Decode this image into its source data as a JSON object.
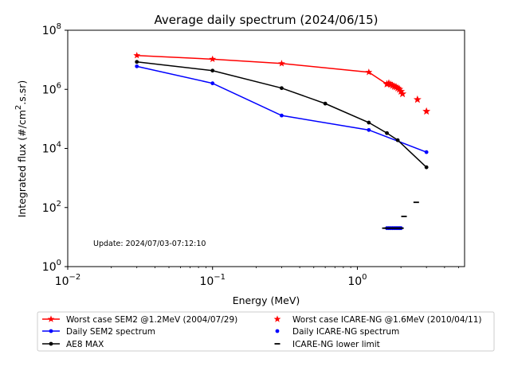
{
  "chart_data": {
    "type": "line",
    "title": "Average daily spectrum (2024/06/15)",
    "xlabel": "Energy (MeV)",
    "ylabel_parts": {
      "pre": "Integrated flux (#/cm",
      "sup": "2",
      "post": ".s.sr)"
    },
    "x_scale": "log",
    "y_scale": "log",
    "xlim": [
      0.01,
      5.5
    ],
    "ylim": [
      1,
      100000000
    ],
    "x_ticks": [
      {
        "value": 0.01,
        "base": "10",
        "exp": "−2"
      },
      {
        "value": 0.1,
        "base": "10",
        "exp": "−1"
      },
      {
        "value": 1,
        "base": "10",
        "exp": "0"
      }
    ],
    "y_ticks": [
      {
        "value": 1,
        "base": "10",
        "exp": "0"
      },
      {
        "value": 100,
        "base": "10",
        "exp": "2"
      },
      {
        "value": 10000,
        "base": "10",
        "exp": "4"
      },
      {
        "value": 1000000,
        "base": "10",
        "exp": "6"
      },
      {
        "value": 100000000,
        "base": "10",
        "exp": "8"
      }
    ],
    "annotation": "Update: 2024/07/03-07:12:10",
    "grid": false,
    "legend_position": "bottom",
    "series": [
      {
        "name": "Worst case SEM2 @1.2MeV (2004/07/29)",
        "color": "#ff0000",
        "marker": "star",
        "line": true,
        "x": [
          0.03,
          0.1,
          0.3,
          1.2,
          1.6
        ],
        "y": [
          14000000,
          10500000,
          7500000,
          3800000,
          1500000
        ]
      },
      {
        "name": "Worst case ICARE-NG @1.6MeV (2010/04/11)",
        "color": "#ff0000",
        "marker": "star",
        "line": false,
        "x": [
          1.6,
          1.65,
          1.7,
          1.75,
          1.8,
          1.85,
          1.9,
          1.95,
          2.0,
          2.05,
          2.6,
          3.0
        ],
        "y": [
          1500000,
          1600000,
          1450000,
          1350000,
          1250000,
          1200000,
          1100000,
          1000000,
          850000,
          700000,
          450000,
          180000
        ]
      },
      {
        "name": "Daily SEM2 spectrum",
        "color": "#0000ff",
        "marker": "dot",
        "line": true,
        "x": [
          0.03,
          0.1,
          0.3,
          1.2,
          3.0
        ],
        "y": [
          6000000,
          1600000,
          130000,
          42000,
          7500
        ]
      },
      {
        "name": "Daily ICARE-NG spectrum",
        "color": "#0000ff",
        "marker": "dot",
        "line": false,
        "x": [
          1.6,
          1.65,
          1.7,
          1.75,
          1.8,
          1.85,
          1.9,
          1.95,
          2.0
        ],
        "y": [
          20,
          20,
          20,
          20,
          20,
          20,
          20,
          20,
          20
        ]
      },
      {
        "name": "AE8 MAX",
        "color": "#000000",
        "marker": "dot",
        "line": true,
        "x": [
          0.03,
          0.1,
          0.3,
          0.6,
          1.2,
          1.6,
          1.9,
          3.0
        ],
        "y": [
          8500000,
          4300000,
          1100000,
          330000,
          75000,
          33000,
          19000,
          2300
        ]
      },
      {
        "name": "ICARE-NG lower limit",
        "color": "#000000",
        "marker": "dash",
        "line": false,
        "x": [
          1.55,
          1.6,
          1.65,
          1.7,
          1.75,
          1.8,
          1.85,
          1.9,
          1.95,
          2.0,
          2.1,
          2.55
        ],
        "y": [
          20,
          20,
          20,
          20,
          20,
          20,
          20,
          20,
          20,
          20,
          50,
          150
        ]
      }
    ],
    "legend_order": [
      0,
      1,
      2,
      3,
      4,
      5
    ]
  }
}
